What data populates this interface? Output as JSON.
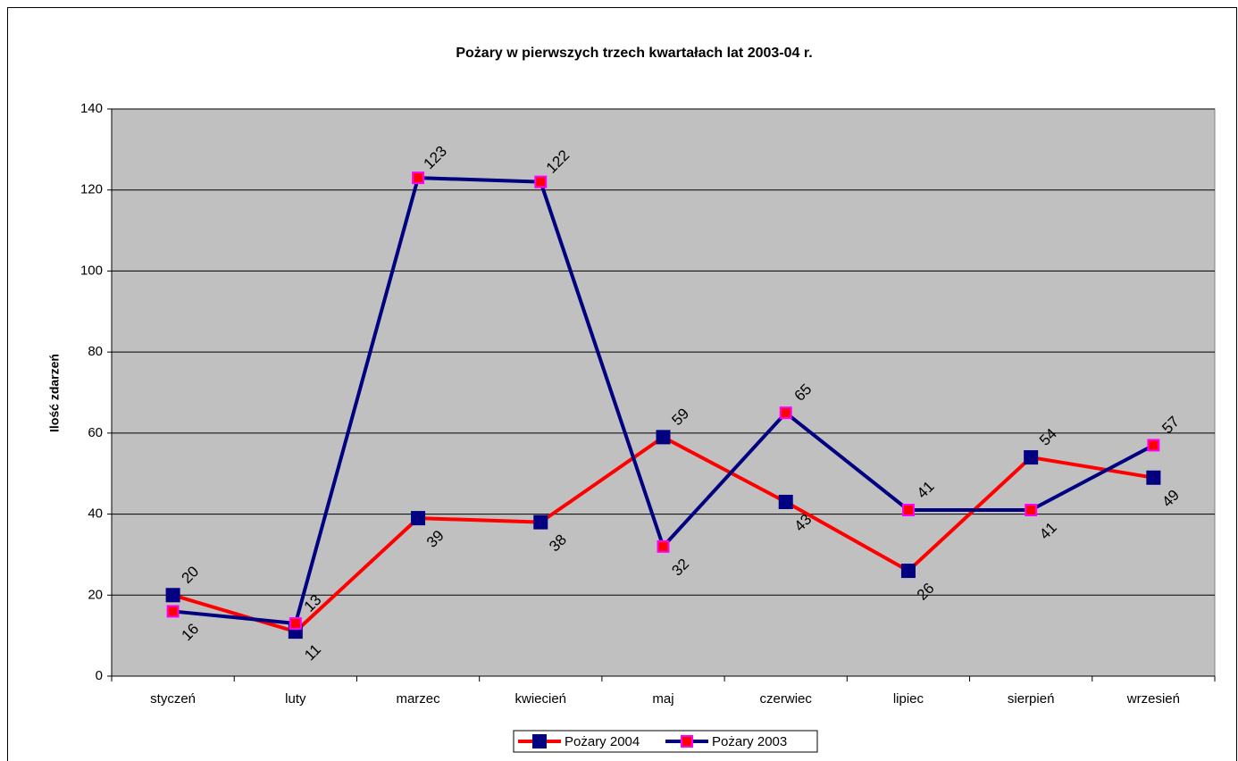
{
  "chart_data": {
    "type": "line",
    "title": "Pożary w pierwszych trzech kwartałach lat 2003-04  r.",
    "y_label": "Ilość zdarzeń",
    "categories": [
      "styczeń",
      "luty",
      "marzec",
      "kwiecień",
      "maj",
      "czerwiec",
      "lipiec",
      "sierpień",
      "wrzesień"
    ],
    "series": [
      {
        "name": "Pożary 2004",
        "color": "#ff0000",
        "marker_color": "#000080",
        "values": [
          20,
          11,
          39,
          38,
          59,
          43,
          26,
          54,
          49
        ]
      },
      {
        "name": "Pożary 2003",
        "color": "#000080",
        "marker_color": "#ff0000",
        "values": [
          16,
          13,
          123,
          122,
          32,
          65,
          41,
          41,
          57
        ]
      }
    ],
    "ylim": [
      0,
      140
    ],
    "yticks": [
      0,
      20,
      40,
      60,
      80,
      100,
      120,
      140
    ],
    "grid": true,
    "legend": "bottom"
  }
}
